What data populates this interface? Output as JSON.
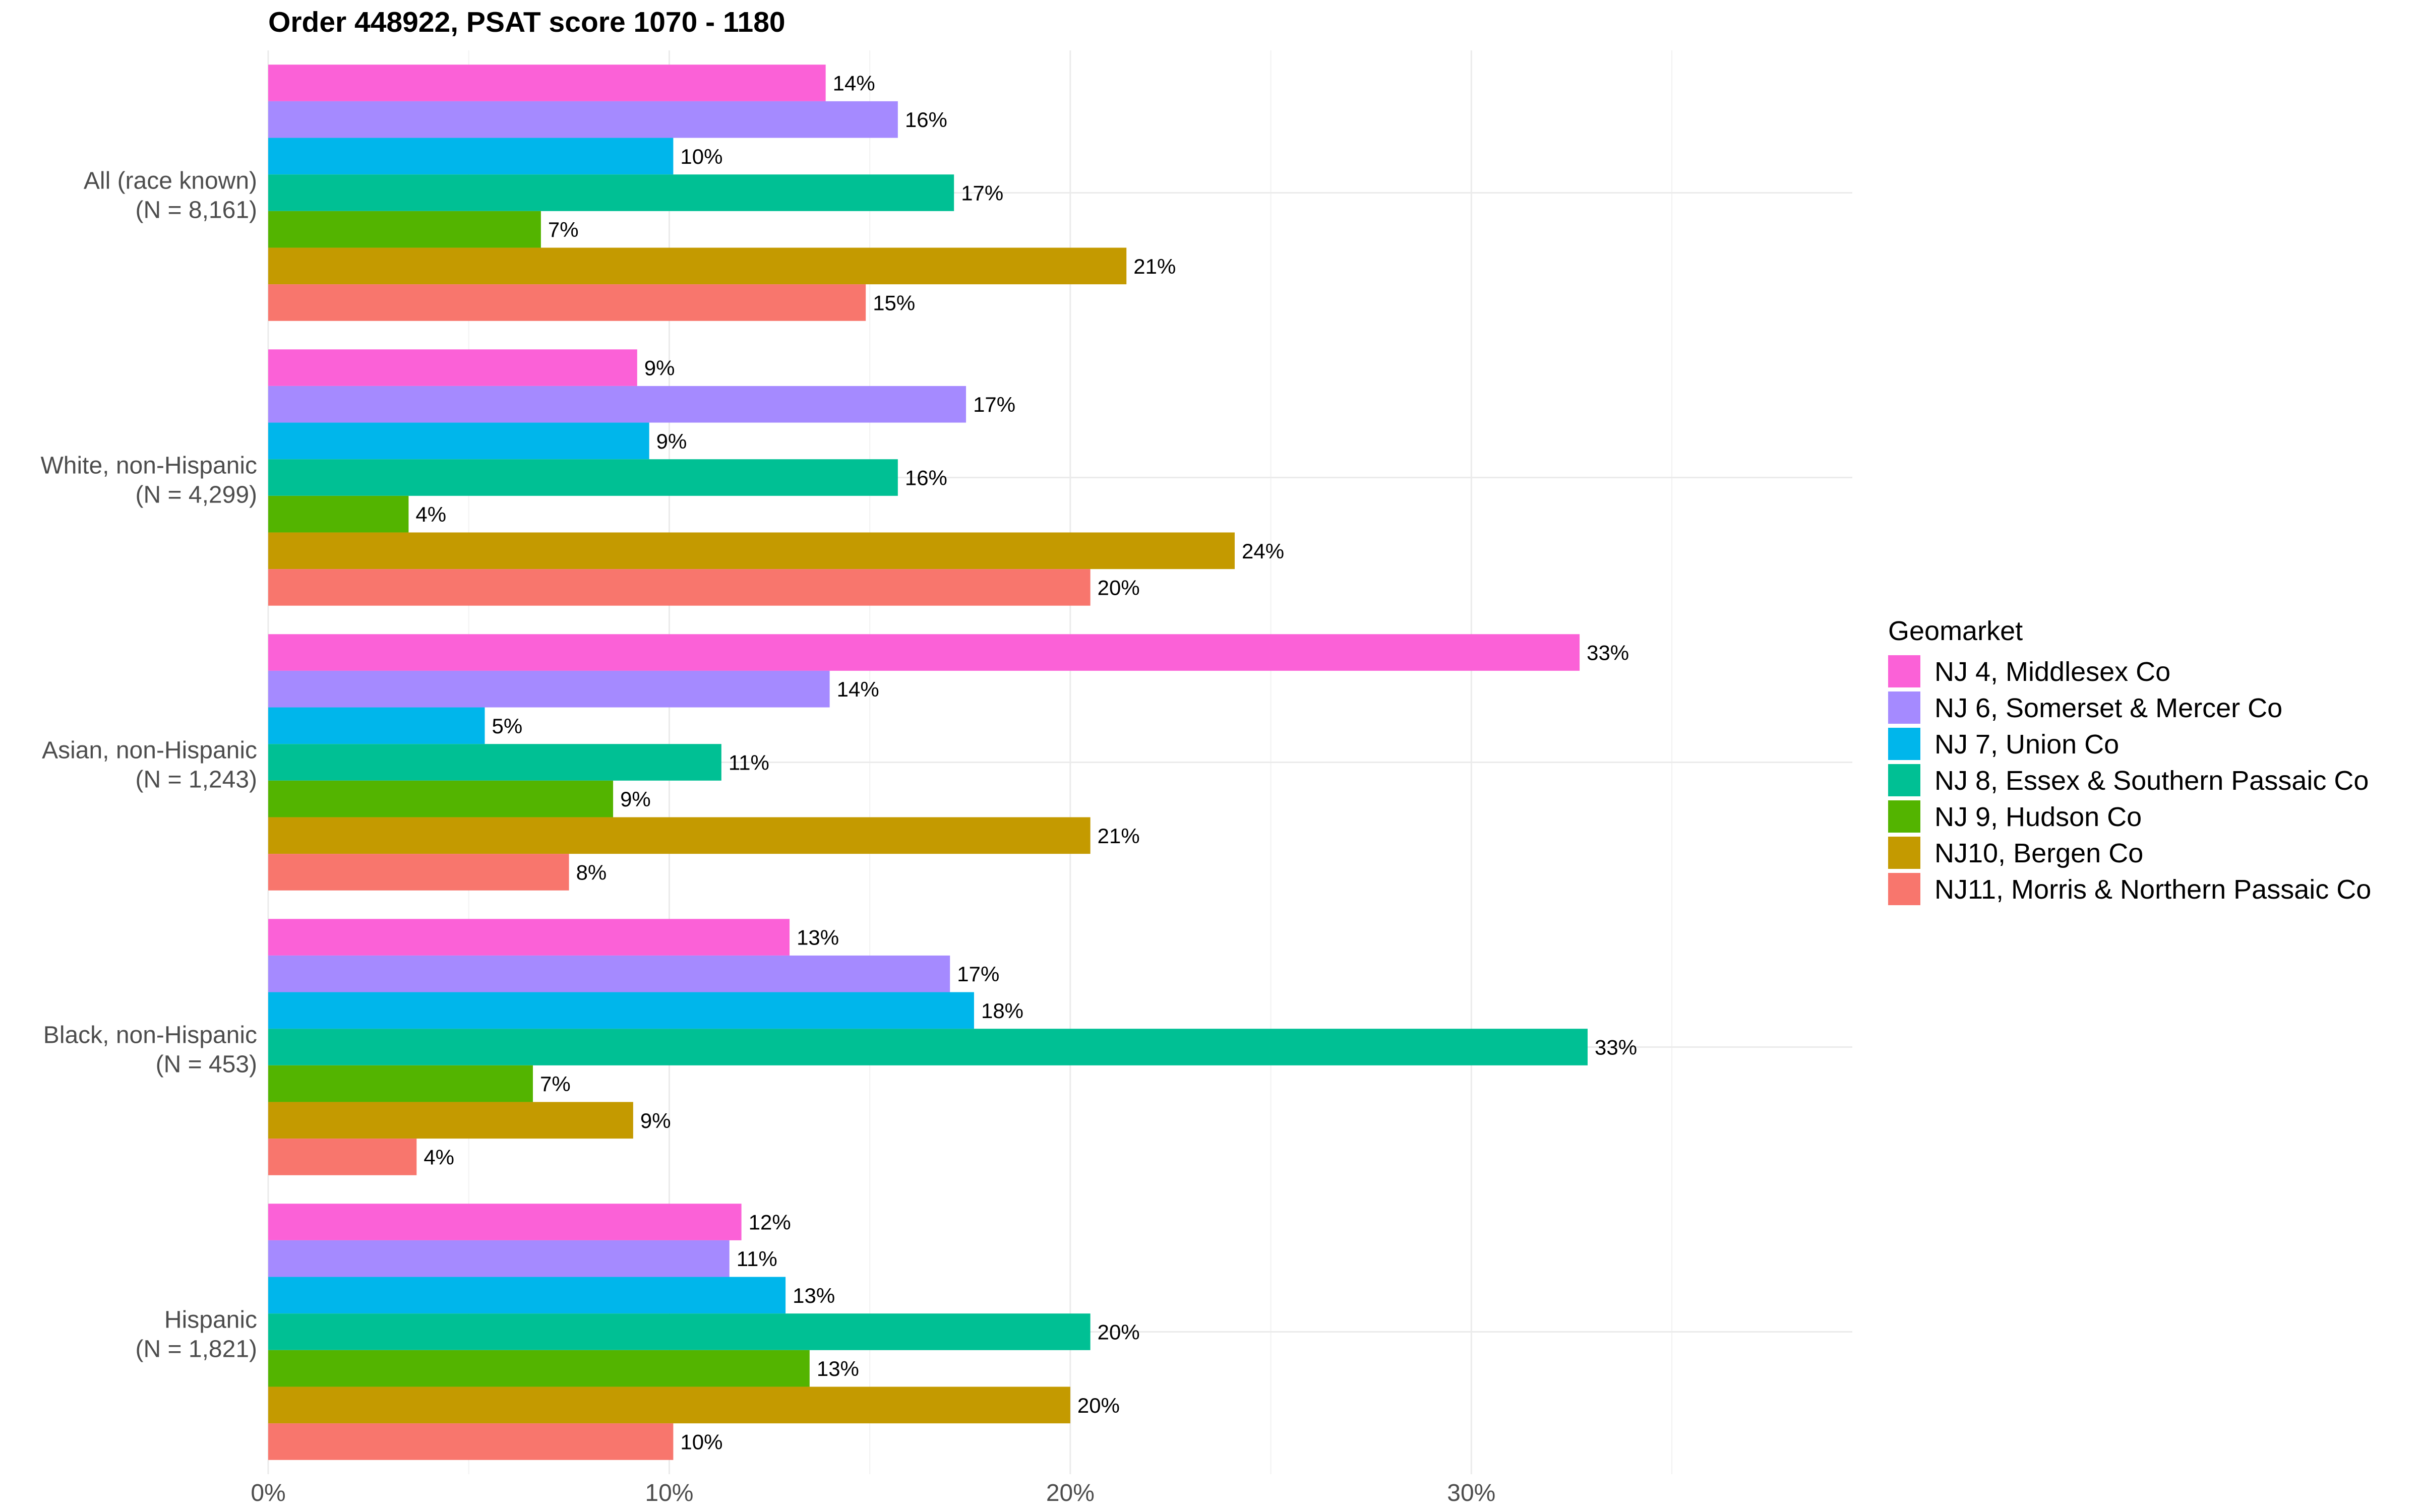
{
  "chart_data": {
    "type": "bar",
    "orientation": "horizontal",
    "title": "Order 448922, PSAT score 1070 - 1180",
    "xlabel": "",
    "ylabel": "",
    "xlim": [
      0,
      39.5
    ],
    "x_ticks": [
      0,
      10,
      20,
      30
    ],
    "x_tick_labels": [
      "0%",
      "10%",
      "20%",
      "30%"
    ],
    "grid": true,
    "legend": {
      "title": "Geomarket",
      "position": "right"
    },
    "categories": [
      "All (race known)\n(N = 8,161)",
      "White, non-Hispanic\n(N = 4,299)",
      "Asian, non-Hispanic\n(N = 1,243)",
      "Black, non-Hispanic\n(N = 453)",
      "Hispanic\n(N = 1,821)"
    ],
    "category_lines": [
      [
        "All (race known)",
        "(N = 8,161)"
      ],
      [
        "White, non-Hispanic",
        "(N = 4,299)"
      ],
      [
        "Asian, non-Hispanic",
        "(N = 1,243)"
      ],
      [
        "Black, non-Hispanic",
        "(N = 453)"
      ],
      [
        "Hispanic",
        "(N = 1,821)"
      ]
    ],
    "series": [
      {
        "name": "NJ 4, Middlesex Co",
        "color": "#FB61D7",
        "values": [
          13.9,
          9.2,
          32.7,
          13.0,
          11.8
        ],
        "labels": [
          "14%",
          "9%",
          "33%",
          "13%",
          "12%"
        ]
      },
      {
        "name": "NJ 6, Somerset & Mercer Co",
        "color": "#A58AFF",
        "values": [
          15.7,
          17.4,
          14.0,
          17.0,
          11.5
        ],
        "labels": [
          "16%",
          "17%",
          "14%",
          "17%",
          "11%"
        ]
      },
      {
        "name": "NJ 7, Union Co",
        "color": "#00B6EB",
        "values": [
          10.1,
          9.5,
          5.4,
          17.6,
          12.9
        ],
        "labels": [
          "10%",
          "9%",
          "5%",
          "18%",
          "13%"
        ]
      },
      {
        "name": "NJ 8, Essex & Southern Passaic Co",
        "color": "#00C094",
        "values": [
          17.1,
          15.7,
          11.3,
          32.9,
          20.5
        ],
        "labels": [
          "17%",
          "16%",
          "11%",
          "33%",
          "20%"
        ]
      },
      {
        "name": "NJ 9, Hudson Co",
        "color": "#53B400",
        "values": [
          6.8,
          3.5,
          8.6,
          6.6,
          13.5
        ],
        "labels": [
          "7%",
          "4%",
          "9%",
          "7%",
          "13%"
        ]
      },
      {
        "name": "NJ10, Bergen Co",
        "color": "#C49A00",
        "values": [
          21.4,
          24.1,
          20.5,
          9.1,
          20.0
        ],
        "labels": [
          "21%",
          "24%",
          "21%",
          "9%",
          "20%"
        ]
      },
      {
        "name": "NJ11, Morris & Northern Passaic Co",
        "color": "#F8766D",
        "values": [
          14.9,
          20.5,
          7.5,
          3.7,
          10.1
        ],
        "labels": [
          "15%",
          "20%",
          "8%",
          "4%",
          "10%"
        ]
      }
    ]
  }
}
